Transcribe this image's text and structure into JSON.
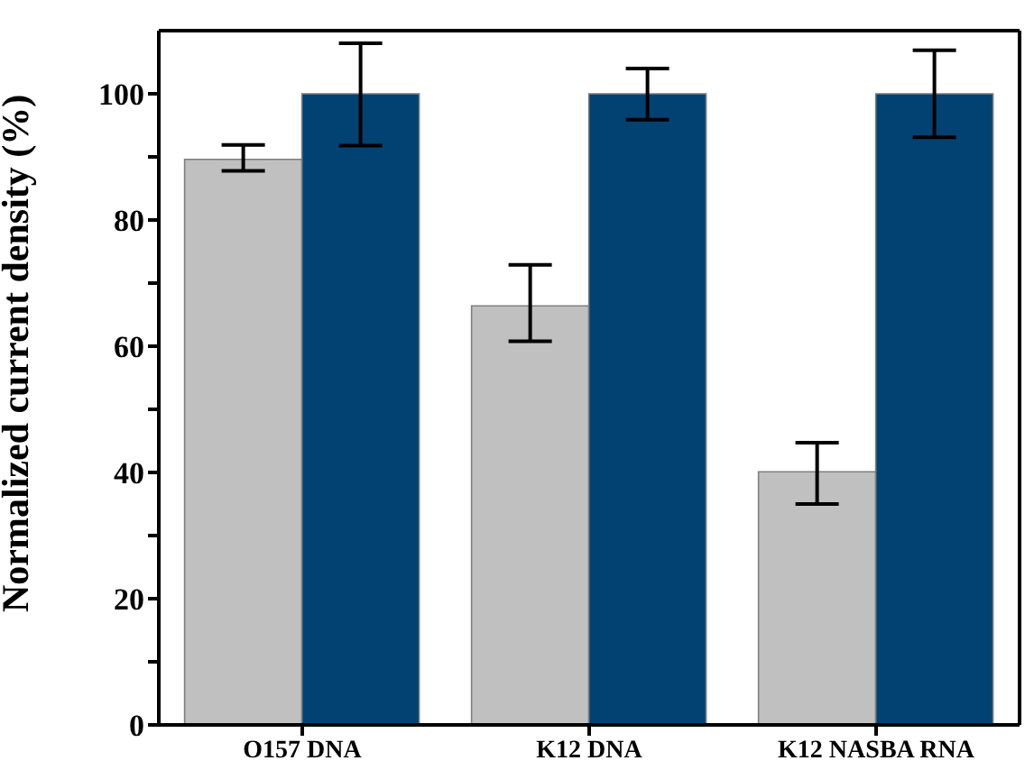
{
  "chart_data": {
    "type": "bar",
    "ylabel": "Normalized current density (%)",
    "categories": [
      "O157 DNA",
      "K12 DNA",
      "K12 NASBA RNA"
    ],
    "series": [
      {
        "color": "#c0c0c0",
        "values": [
          89.6,
          66.4,
          40.1
        ],
        "errors": [
          [
            87.8,
            91.9
          ],
          [
            60.8,
            72.9
          ],
          [
            35,
            44.7
          ]
        ]
      },
      {
        "color": "#024273",
        "values": [
          100,
          100,
          100
        ],
        "errors": [
          [
            91.8,
            108
          ],
          [
            95.9,
            104
          ],
          [
            93.1,
            106.9
          ]
        ]
      }
    ],
    "ylim": [
      0,
      110
    ],
    "yticks": [
      0,
      {
        "value": 10,
        "label": null
      },
      20,
      {
        "value": 30,
        "label": null
      },
      40,
      {
        "value": 50,
        "label": null
      },
      60,
      {
        "value": 70,
        "label": null
      },
      80,
      {
        "value": 90,
        "label": null
      },
      100
    ],
    "grid": false,
    "legend": false
  }
}
